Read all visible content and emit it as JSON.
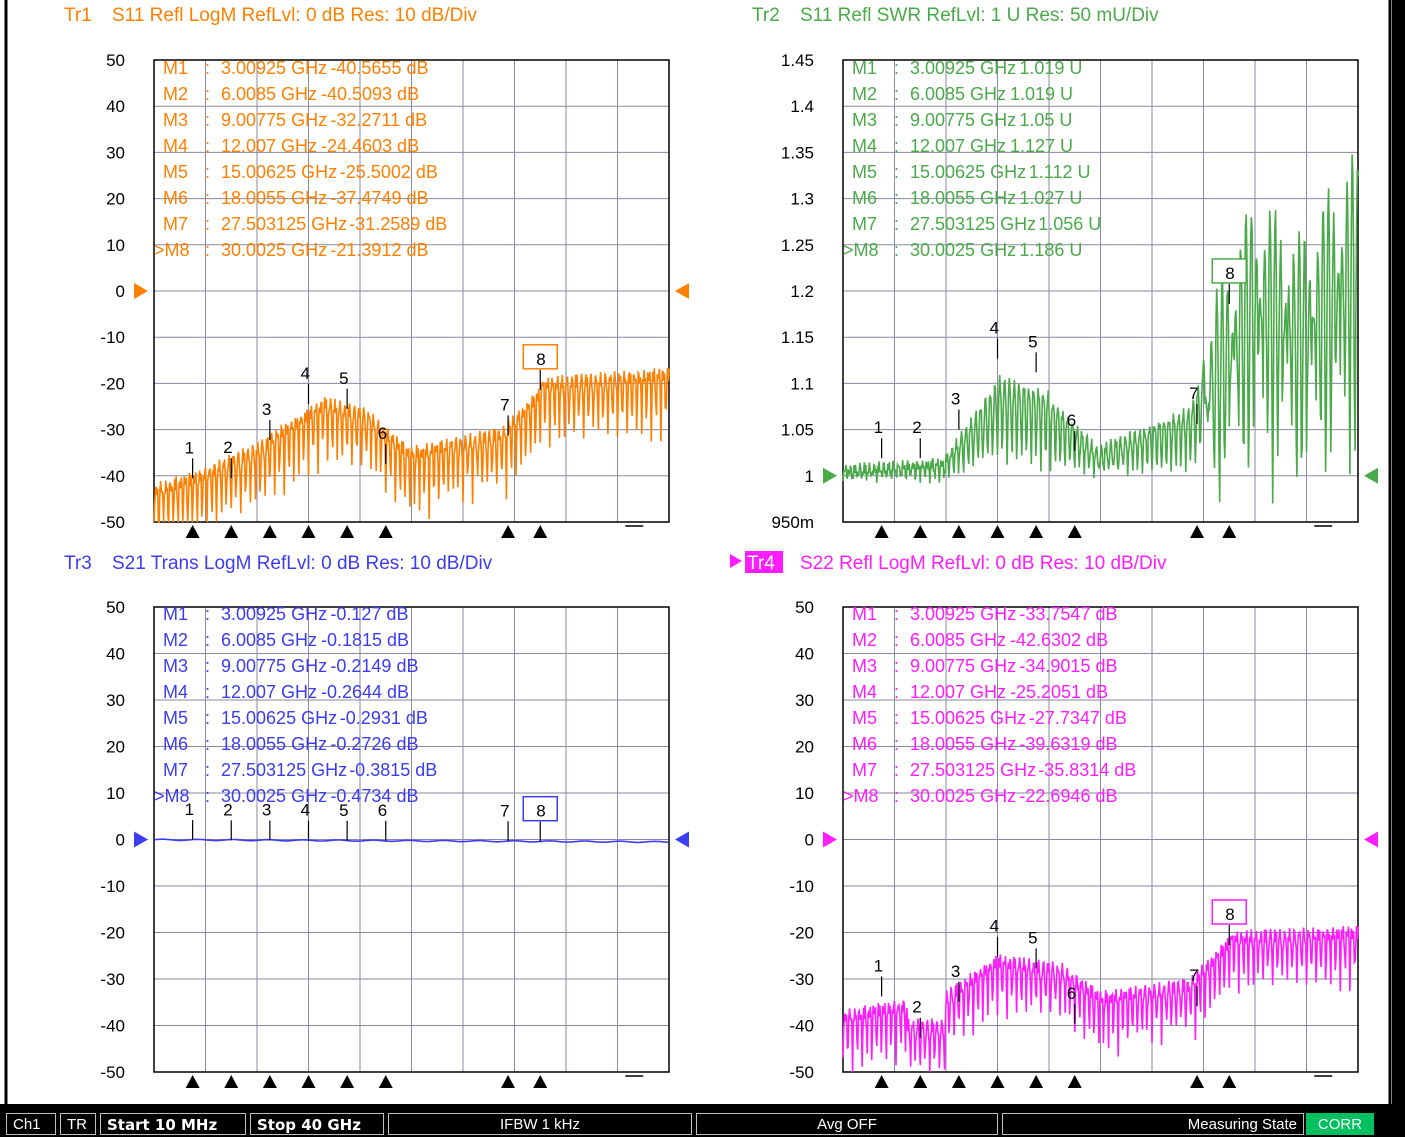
{
  "chart_data": [
    {
      "type": "line",
      "trace_name": "Tr1",
      "title": "S11 Refl LogM RefLvl: 0  dB Res: 10  dB/Div",
      "color": "#ff8000",
      "active": false,
      "xlim": [
        0.01,
        40
      ],
      "ylim": [
        -50,
        50
      ],
      "yticks": [
        "50",
        "40",
        "30",
        "20",
        "10",
        "0",
        "-10",
        "-20",
        "-30",
        "-40",
        "-50"
      ],
      "ytick_values": [
        50,
        40,
        30,
        20,
        10,
        0,
        -10,
        -20,
        -30,
        -40,
        -50
      ],
      "ref_value": 0,
      "markers": [
        {
          "id": "1",
          "label": "M1",
          "freq": "3.00925 GHz",
          "value": "-40.5655",
          "unit": "dB",
          "x": 3.00925,
          "y": -40.5655
        },
        {
          "id": "2",
          "label": "M2",
          "freq": "6.0085 GHz",
          "value": "-40.5093",
          "unit": "dB",
          "x": 6.0085,
          "y": -40.5093
        },
        {
          "id": "3",
          "label": "M3",
          "freq": "9.00775 GHz",
          "value": "-32.2711",
          "unit": "dB",
          "x": 9.00775,
          "y": -32.2711
        },
        {
          "id": "4",
          "label": "M4",
          "freq": "12.007 GHz",
          "value": "-24.4603",
          "unit": "dB",
          "x": 12.007,
          "y": -24.4603
        },
        {
          "id": "5",
          "label": "M5",
          "freq": "15.00625 GHz",
          "value": "-25.5002",
          "unit": "dB",
          "x": 15.00625,
          "y": -25.5002
        },
        {
          "id": "6",
          "label": "M6",
          "freq": "18.0055 GHz",
          "value": "-37.4749",
          "unit": "dB",
          "x": 18.0055,
          "y": -37.4749
        },
        {
          "id": "7",
          "label": "M7",
          "freq": "27.503125 GHz",
          "value": "-31.2589",
          "unit": "dB",
          "x": 27.503125,
          "y": -31.2589
        },
        {
          "id": "8",
          "label": "M8",
          "freq": "30.0025 GHz",
          "value": "-21.3912",
          "unit": "dB",
          "x": 30.0025,
          "y": -21.3912,
          "active": true
        }
      ]
    },
    {
      "type": "line",
      "trace_name": "Tr2",
      "title": "S11 Refl SWR RefLvl: 1  U Res: 50 mU/Div",
      "color": "#4aaa4a",
      "active": false,
      "xlim": [
        0.01,
        40
      ],
      "ylim": [
        0.95,
        1.45
      ],
      "yticks": [
        "1.45",
        "1.4",
        "1.35",
        "1.3",
        "1.25",
        "1.2",
        "1.15",
        "1.1",
        "1.05",
        "1",
        "950m"
      ],
      "ytick_values": [
        1.45,
        1.4,
        1.35,
        1.3,
        1.25,
        1.2,
        1.15,
        1.1,
        1.05,
        1,
        0.95
      ],
      "ref_value": 1,
      "markers": [
        {
          "id": "1",
          "label": "M1",
          "freq": "3.00925 GHz",
          "value": "1.019",
          "unit": "U",
          "x": 3.00925,
          "y": 1.019
        },
        {
          "id": "2",
          "label": "M2",
          "freq": "6.0085 GHz",
          "value": "1.019",
          "unit": "U",
          "x": 6.0085,
          "y": 1.019
        },
        {
          "id": "3",
          "label": "M3",
          "freq": "9.00775 GHz",
          "value": "1.05",
          "unit": "U",
          "x": 9.00775,
          "y": 1.05
        },
        {
          "id": "4",
          "label": "M4",
          "freq": "12.007 GHz",
          "value": "1.127",
          "unit": "U",
          "x": 12.007,
          "y": 1.127
        },
        {
          "id": "5",
          "label": "M5",
          "freq": "15.00625 GHz",
          "value": "1.112",
          "unit": "U",
          "x": 15.00625,
          "y": 1.112
        },
        {
          "id": "6",
          "label": "M6",
          "freq": "18.0055 GHz",
          "value": "1.027",
          "unit": "U",
          "x": 18.0055,
          "y": 1.027
        },
        {
          "id": "7",
          "label": "M7",
          "freq": "27.503125 GHz",
          "value": "1.056",
          "unit": "U",
          "x": 27.503125,
          "y": 1.056
        },
        {
          "id": "8",
          "label": "M8",
          "freq": "30.0025 GHz",
          "value": "1.186",
          "unit": "U",
          "x": 30.0025,
          "y": 1.186,
          "active": true
        }
      ]
    },
    {
      "type": "line",
      "trace_name": "Tr3",
      "title": "S21 Trans LogM RefLvl: 0  dB Res: 10  dB/Div",
      "color": "#3c3cf0",
      "active": false,
      "xlim": [
        0.01,
        40
      ],
      "ylim": [
        -50,
        50
      ],
      "yticks": [
        "50",
        "40",
        "30",
        "20",
        "10",
        "0",
        "-10",
        "-20",
        "-30",
        "-40",
        "-50"
      ],
      "ytick_values": [
        50,
        40,
        30,
        20,
        10,
        0,
        -10,
        -20,
        -30,
        -40,
        -50
      ],
      "ref_value": 0,
      "markers": [
        {
          "id": "1",
          "label": "M1",
          "freq": "3.00925 GHz",
          "value": "-0.127",
          "unit": "dB",
          "x": 3.00925,
          "y": -0.127
        },
        {
          "id": "2",
          "label": "M2",
          "freq": "6.0085 GHz",
          "value": "-0.1815",
          "unit": "dB",
          "x": 6.0085,
          "y": -0.1815
        },
        {
          "id": "3",
          "label": "M3",
          "freq": "9.00775 GHz",
          "value": "-0.2149",
          "unit": "dB",
          "x": 9.00775,
          "y": -0.2149
        },
        {
          "id": "4",
          "label": "M4",
          "freq": "12.007 GHz",
          "value": "-0.2644",
          "unit": "dB",
          "x": 12.007,
          "y": -0.2644
        },
        {
          "id": "5",
          "label": "M5",
          "freq": "15.00625 GHz",
          "value": "-0.2931",
          "unit": "dB",
          "x": 15.00625,
          "y": -0.2931
        },
        {
          "id": "6",
          "label": "M6",
          "freq": "18.0055 GHz",
          "value": "-0.2726",
          "unit": "dB",
          "x": 18.0055,
          "y": -0.2726
        },
        {
          "id": "7",
          "label": "M7",
          "freq": "27.503125 GHz",
          "value": "-0.3815",
          "unit": "dB",
          "x": 27.503125,
          "y": -0.3815
        },
        {
          "id": "8",
          "label": "M8",
          "freq": "30.0025 GHz",
          "value": "-0.4734",
          "unit": "dB",
          "x": 30.0025,
          "y": -0.4734,
          "active": true
        }
      ]
    },
    {
      "type": "line",
      "trace_name": "Tr4",
      "title": "S22 Refl LogM RefLvl: 0  dB Res: 10  dB/Div",
      "color": "#ff1cff",
      "active": true,
      "xlim": [
        0.01,
        40
      ],
      "ylim": [
        -50,
        50
      ],
      "yticks": [
        "50",
        "40",
        "30",
        "20",
        "10",
        "0",
        "-10",
        "-20",
        "-30",
        "-40",
        "-50"
      ],
      "ytick_values": [
        50,
        40,
        30,
        20,
        10,
        0,
        -10,
        -20,
        -30,
        -40,
        -50
      ],
      "ref_value": 0,
      "markers": [
        {
          "id": "1",
          "label": "M1",
          "freq": "3.00925 GHz",
          "value": "-33.7547",
          "unit": "dB",
          "x": 3.00925,
          "y": -33.7547
        },
        {
          "id": "2",
          "label": "M2",
          "freq": "6.0085 GHz",
          "value": "-42.6302",
          "unit": "dB",
          "x": 6.0085,
          "y": -42.6302
        },
        {
          "id": "3",
          "label": "M3",
          "freq": "9.00775 GHz",
          "value": "-34.9015",
          "unit": "dB",
          "x": 9.00775,
          "y": -34.9015
        },
        {
          "id": "4",
          "label": "M4",
          "freq": "12.007 GHz",
          "value": "-25.2051",
          "unit": "dB",
          "x": 12.007,
          "y": -25.2051
        },
        {
          "id": "5",
          "label": "M5",
          "freq": "15.00625 GHz",
          "value": "-27.7347",
          "unit": "dB",
          "x": 15.00625,
          "y": -27.7347
        },
        {
          "id": "6",
          "label": "M6",
          "freq": "18.0055 GHz",
          "value": "-39.6319",
          "unit": "dB",
          "x": 18.0055,
          "y": -39.6319
        },
        {
          "id": "7",
          "label": "M7",
          "freq": "27.503125 GHz",
          "value": "-35.8314",
          "unit": "dB",
          "x": 27.503125,
          "y": -35.8314
        },
        {
          "id": "8",
          "label": "M8",
          "freq": "30.0025 GHz",
          "value": "-22.6946",
          "unit": "dB",
          "x": 30.0025,
          "y": -22.6946,
          "active": true
        }
      ]
    }
  ],
  "status_bar": {
    "channel": "Ch1",
    "tr": "TR",
    "start": "Start 10 MHz",
    "stop": "Stop 40 GHz",
    "ifbw": "IFBW 1 kHz",
    "avg": "Avg OFF",
    "state": "Measuring State",
    "corr": "CORR"
  },
  "colors": {
    "background": "#ffffff",
    "grid": "#8a8aa0",
    "frame": "#000000",
    "status_bg": "#000000",
    "corr_bg": "#00c060",
    "watermark": "#d00000"
  }
}
